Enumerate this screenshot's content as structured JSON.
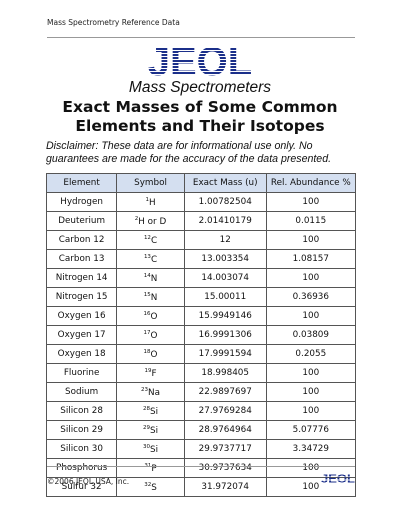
{
  "header": {
    "text": "Mass Spectrometry Reference Data"
  },
  "logo": {
    "brand": "JEOL",
    "subtitle": "Mass Spectrometers"
  },
  "title": {
    "line1": "Exact Masses of Some Common",
    "line2": "Elements and Their Isotopes"
  },
  "disclaimer": "Disclaimer: These data are for informational use only. No guarantees are made for the accuracy of the data presented.",
  "table": {
    "headers": [
      "Element",
      "Symbol",
      "Exact Mass (u)",
      "Rel. Abundance %"
    ],
    "rows": [
      {
        "element": "Hydrogen",
        "iso": "1",
        "sym": "H",
        "sym_extra": "",
        "mass": "1.00782504",
        "abund": "100"
      },
      {
        "element": "Deuterium",
        "iso": "2",
        "sym": "H or D",
        "sym_extra": "",
        "mass": "2.01410179",
        "abund": "0.0115"
      },
      {
        "element": "Carbon 12",
        "iso": "12",
        "sym": "C",
        "sym_extra": "",
        "mass": "12",
        "abund": "100"
      },
      {
        "element": "Carbon 13",
        "iso": "13",
        "sym": "C",
        "sym_extra": "",
        "mass": "13.003354",
        "abund": "1.08157"
      },
      {
        "element": "Nitrogen 14",
        "iso": "14",
        "sym": "N",
        "sym_extra": "",
        "mass": "14.003074",
        "abund": "100"
      },
      {
        "element": "Nitrogen 15",
        "iso": "15",
        "sym": "N",
        "sym_extra": "",
        "mass": "15.00011",
        "abund": "0.36936"
      },
      {
        "element": "Oxygen 16",
        "iso": "16",
        "sym": "O",
        "sym_extra": "",
        "mass": "15.9949146",
        "abund": "100"
      },
      {
        "element": "Oxygen 17",
        "iso": "17",
        "sym": "O",
        "sym_extra": "",
        "mass": "16.9991306",
        "abund": "0.03809"
      },
      {
        "element": "Oxygen 18",
        "iso": "18",
        "sym": "O",
        "sym_extra": "",
        "mass": "17.9991594",
        "abund": "0.2055"
      },
      {
        "element": "Fluorine",
        "iso": "19",
        "sym": "F",
        "sym_extra": "",
        "mass": "18.998405",
        "abund": "100"
      },
      {
        "element": "Sodium",
        "iso": "23",
        "sym": "Na",
        "sym_extra": "",
        "mass": "22.9897697",
        "abund": "100"
      },
      {
        "element": "Silicon 28",
        "iso": "28",
        "sym": "Si",
        "sym_extra": "",
        "mass": "27.9769284",
        "abund": "100"
      },
      {
        "element": "Silicon 29",
        "iso": "29",
        "sym": "Si",
        "sym_extra": "",
        "mass": "28.9764964",
        "abund": "5.07776"
      },
      {
        "element": "Silicon 30",
        "iso": "30",
        "sym": "Si",
        "sym_extra": "",
        "mass": "29.9737717",
        "abund": "3.34729"
      },
      {
        "element": "Phosphorus",
        "iso": "31",
        "sym": "P",
        "sym_extra": "",
        "mass": "30.9737634",
        "abund": "100"
      },
      {
        "element": "Sulfur 32",
        "iso": "32",
        "sym": "S",
        "sym_extra": "",
        "mass": "31.972074",
        "abund": "100"
      }
    ]
  },
  "footer": {
    "copyright": "©2006 JEOL USA, Inc.",
    "logo": "JEOL"
  },
  "colors": {
    "brand_blue": "#1b2f8a",
    "header_fill": "#d4dff0"
  }
}
